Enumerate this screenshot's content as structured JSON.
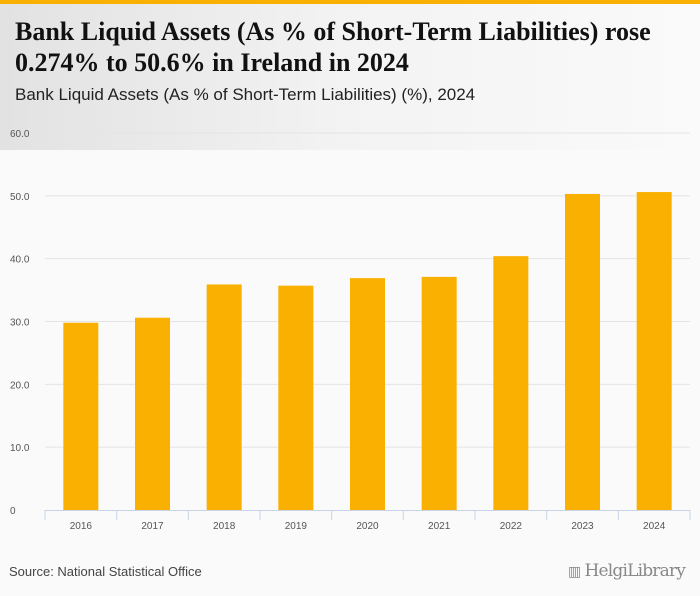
{
  "header": {
    "title": "Bank Liquid Assets (As % of Short-Term Liabilities) rose 0.274% to 50.6% in Ireland in 2024",
    "subtitle": "Bank Liquid Assets (As % of Short-Term Liabilities) (%), 2024"
  },
  "footer": {
    "source": "Source: National Statistical Office",
    "logo": "HelgiLibrary"
  },
  "colors": {
    "accent": "#f9b000",
    "bar": "#f9b000"
  },
  "chart_data": {
    "type": "bar",
    "title": "Bank Liquid Assets (As % of Short-Term Liabilities) (%), 2024",
    "categories": [
      "2016",
      "2017",
      "2018",
      "2019",
      "2020",
      "2021",
      "2022",
      "2023",
      "2024"
    ],
    "values": [
      29.8,
      30.6,
      35.9,
      35.7,
      36.9,
      37.1,
      40.4,
      50.3,
      50.6
    ],
    "ylim": [
      0,
      60
    ],
    "yticks": [
      "0",
      "10.0",
      "20.0",
      "30.0",
      "40.0",
      "50.0",
      "60.0"
    ],
    "xlabel": "",
    "ylabel": "",
    "grid": true
  }
}
